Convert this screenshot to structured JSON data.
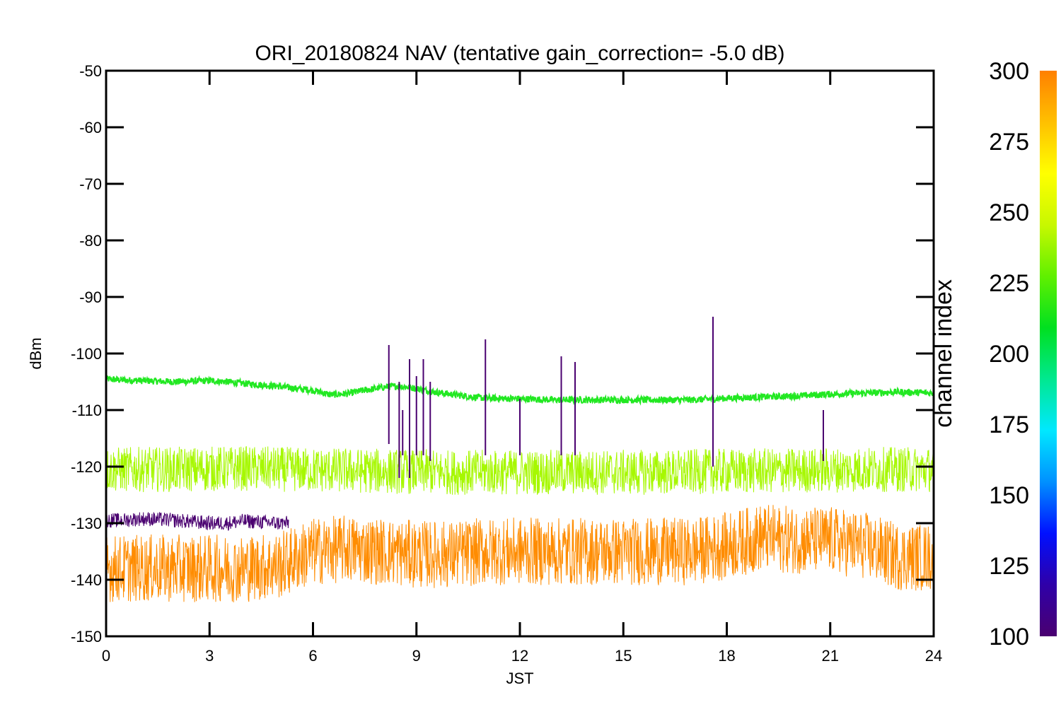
{
  "chart_data": {
    "type": "line",
    "title": "ORI_20180824 NAV (tentative gain_correction= -5.0 dB)",
    "xlabel": "JST",
    "ylabel": "dBm",
    "xlim": [
      0,
      24
    ],
    "ylim": [
      -150,
      -50
    ],
    "xticks": [
      0,
      3,
      6,
      9,
      12,
      15,
      18,
      21,
      24
    ],
    "yticks": [
      -50,
      -60,
      -70,
      -80,
      -90,
      -100,
      -110,
      -120,
      -130,
      -140,
      -150
    ],
    "grid": false,
    "colorbar": {
      "label": "channel index",
      "range": [
        100,
        300
      ],
      "ticks": [
        300,
        275,
        250,
        225,
        200,
        175,
        150,
        125,
        100
      ],
      "colormap": [
        "#4a0070",
        "#2f00a8",
        "#0010ff",
        "#0090ff",
        "#00e8ff",
        "#00e890",
        "#00e020",
        "#60f000",
        "#c8f800",
        "#ffff00",
        "#ffc000",
        "#ff8000"
      ]
    },
    "series": [
      {
        "color": "#22e822",
        "x": [
          0,
          0.5,
          1,
          2,
          3,
          3.5,
          4,
          5,
          5.5,
          6,
          6.5,
          7,
          7.5,
          8,
          8.5,
          9,
          9.5,
          10,
          10.5,
          11,
          12,
          13,
          14,
          15,
          16,
          17,
          18,
          19,
          20,
          21,
          22,
          23,
          24
        ],
        "values": [
          -104.5,
          -104.7,
          -104.8,
          -105.0,
          -104.8,
          -105.0,
          -105.3,
          -105.8,
          -106.2,
          -106.5,
          -107.3,
          -107.1,
          -106.5,
          -106.0,
          -105.7,
          -106.2,
          -106.8,
          -107.2,
          -107.6,
          -107.9,
          -108.0,
          -108.2,
          -108.2,
          -108.2,
          -108.2,
          -108.2,
          -107.9,
          -107.7,
          -107.5,
          -107.2,
          -107.0,
          -106.8,
          -107.0
        ]
      },
      {
        "color": "#a6f800",
        "x": [
          0,
          2,
          4,
          6,
          8,
          10,
          12,
          14,
          16,
          18,
          20,
          22,
          24
        ],
        "values": [
          -120.5,
          -120.5,
          -120.3,
          -120.6,
          -120.8,
          -121.0,
          -121.0,
          -121.0,
          -121.0,
          -120.8,
          -120.7,
          -120.5,
          -120.5
        ]
      },
      {
        "color": "#ff8c00",
        "x": [
          0,
          1,
          2,
          3,
          4,
          5,
          6,
          7,
          8,
          9,
          10,
          11,
          12,
          13,
          14,
          15,
          16,
          17,
          18,
          19,
          20,
          21,
          22,
          23,
          24
        ],
        "values": [
          -138,
          -138,
          -138,
          -138,
          -138,
          -137.5,
          -135,
          -134.5,
          -135,
          -135.5,
          -135.5,
          -135,
          -135,
          -135,
          -135,
          -135,
          -135,
          -135,
          -134,
          -132.5,
          -133,
          -133,
          -134,
          -136,
          -136
        ]
      },
      {
        "color": "#4a0070",
        "x": [
          0,
          0.5,
          1,
          1.5,
          2,
          3,
          3.5,
          4,
          4.5,
          5,
          5.3
        ],
        "values": [
          -129.5,
          -129.5,
          -129.2,
          -129.3,
          -129.5,
          -130,
          -130,
          -129.6,
          -129.8,
          -130,
          -130
        ]
      }
    ],
    "spikes": [
      {
        "x": 8.2,
        "top": -98.5,
        "bottom": -116,
        "color": "#4a0070"
      },
      {
        "x": 8.5,
        "top": -105,
        "bottom": -122,
        "color": "#4a0070"
      },
      {
        "x": 8.6,
        "top": -110,
        "bottom": -118,
        "color": "#4a0070"
      },
      {
        "x": 8.8,
        "top": -101,
        "bottom": -122,
        "color": "#4a0070"
      },
      {
        "x": 9.0,
        "top": -104,
        "bottom": -118,
        "color": "#4a0070"
      },
      {
        "x": 9.2,
        "top": -101,
        "bottom": -118,
        "color": "#4a0070"
      },
      {
        "x": 9.4,
        "top": -105,
        "bottom": -119,
        "color": "#4a0070"
      },
      {
        "x": 11.0,
        "top": -97.5,
        "bottom": -118,
        "color": "#4a0070"
      },
      {
        "x": 12.0,
        "top": -108,
        "bottom": -118,
        "color": "#4a0070"
      },
      {
        "x": 13.2,
        "top": -100.5,
        "bottom": -118,
        "color": "#4a0070"
      },
      {
        "x": 13.6,
        "top": -101.5,
        "bottom": -118,
        "color": "#4a0070"
      },
      {
        "x": 17.6,
        "top": -93.5,
        "bottom": -120,
        "color": "#4a0070"
      },
      {
        "x": 20.8,
        "top": -110,
        "bottom": -119,
        "color": "#4a0070"
      }
    ]
  }
}
